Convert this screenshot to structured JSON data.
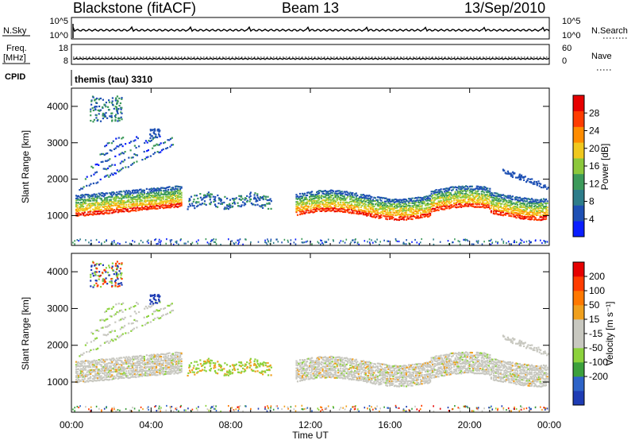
{
  "header": {
    "station": "Blackstone (fitACF)",
    "beam": "Beam 13",
    "date": "13/Sep/2010"
  },
  "strip_labels": {
    "nsky": "N.Sky",
    "nsky_ticks": [
      "10^5",
      "10^0"
    ],
    "nsearch": "N.Search",
    "nsearch_ticks": [
      "10^5",
      "10^0"
    ],
    "freq_line1": "Freq.",
    "freq_line2": "[MHz]",
    "freq_ticks": [
      "18",
      "8"
    ],
    "nave": "Nave",
    "nave_ticks": [
      "60",
      "0"
    ],
    "cpid": "CPID",
    "cpid_value": "themis (tau) 3310"
  },
  "chart_data": [
    {
      "type": "heatmap",
      "name": "power",
      "ylabel": "Slant Range [km]",
      "xlabel": "",
      "x_ticks": [
        "00:00",
        "04:00",
        "08:00",
        "12:00",
        "16:00",
        "20:00",
        "00:00"
      ],
      "xlim_hours": [
        0,
        24
      ],
      "y_ticks": [
        1000,
        2000,
        3000,
        4000
      ],
      "ylim": [
        180,
        4500
      ],
      "colorbar": {
        "label": "Power [dB]",
        "ticks": [
          "4",
          "8",
          "12",
          "16",
          "20",
          "24",
          "28"
        ],
        "colors": [
          "#0a1eff",
          "#1e50b4",
          "#2e7d8a",
          "#3c9a5a",
          "#8cc83c",
          "#f0c81e",
          "#ff8c00",
          "#ff3c00",
          "#e60000"
        ]
      }
    },
    {
      "type": "heatmap",
      "name": "velocity",
      "ylabel": "Slant Range [km]",
      "xlabel": "Time UT",
      "x_ticks": [
        "00:00",
        "04:00",
        "08:00",
        "12:00",
        "16:00",
        "20:00",
        "00:00"
      ],
      "xlim_hours": [
        0,
        24
      ],
      "y_ticks": [
        1000,
        2000,
        3000,
        4000
      ],
      "ylim": [
        180,
        4500
      ],
      "colorbar": {
        "label": "Velocity [m s⁻¹]",
        "ticks": [
          "200",
          "100",
          "50",
          "15",
          "-15",
          "-50",
          "-100",
          "-200"
        ],
        "colors": [
          "#1e3cb4",
          "#2e64c8",
          "#3ca03c",
          "#8cd23c",
          "#c8c8c0",
          "#c8c8c0",
          "#f0a01e",
          "#ff7800",
          "#ff3c00",
          "#e60000"
        ]
      }
    }
  ]
}
